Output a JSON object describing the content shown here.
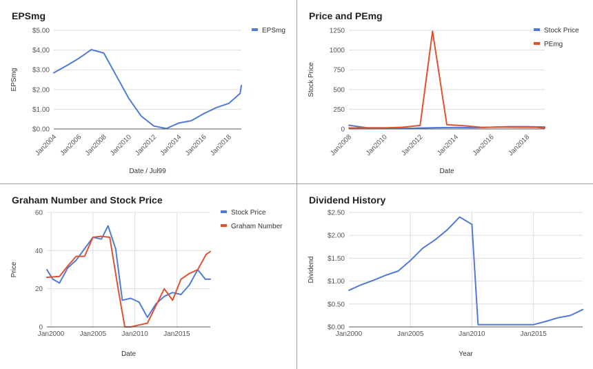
{
  "colors": {
    "blue": "#4f7ad9",
    "red": "#e0502f"
  },
  "chart_data": [
    {
      "id": "eps",
      "type": "line",
      "title": "EPSmg",
      "xlabel": "Date / Jul99",
      "ylabel": "EPSmg",
      "x_type": "year",
      "xlim": [
        2004,
        2019
      ],
      "ylim": [
        0,
        5
      ],
      "yticks": [
        {
          "v": 0,
          "label": "$0.00"
        },
        {
          "v": 1,
          "label": "$1.00"
        },
        {
          "v": 2,
          "label": "$2.00"
        },
        {
          "v": 3,
          "label": "$3.00"
        },
        {
          "v": 4,
          "label": "$4.00"
        },
        {
          "v": 5,
          "label": "$5.00"
        }
      ],
      "xticks": [
        {
          "v": 2004,
          "label": "Jan2004"
        },
        {
          "v": 2006,
          "label": "Jan2006"
        },
        {
          "v": 2008,
          "label": "Jan2008"
        },
        {
          "v": 2010,
          "label": "Jan2010"
        },
        {
          "v": 2012,
          "label": "Jan2012"
        },
        {
          "v": 2014,
          "label": "Jan2014"
        },
        {
          "v": 2016,
          "label": "Jan2016"
        },
        {
          "v": 2018,
          "label": "Jan2018"
        }
      ],
      "x_ticks_rotated": true,
      "vgrid": false,
      "legend_position": "top-right",
      "series": [
        {
          "name": "EPSmg",
          "color": "blue",
          "x": [
            2004,
            2005,
            2006,
            2007,
            2008,
            2009,
            2010,
            2011,
            2012,
            2013,
            2014,
            2015,
            2016,
            2017,
            2018,
            2018.9,
            2019
          ],
          "y": [
            2.85,
            3.2,
            3.58,
            4.02,
            3.85,
            2.7,
            1.55,
            0.65,
            0.15,
            0.02,
            0.3,
            0.42,
            0.78,
            1.08,
            1.3,
            1.8,
            2.2
          ]
        }
      ]
    },
    {
      "id": "pe",
      "type": "line",
      "title": "Price and PEmg",
      "xlabel": "Date",
      "ylabel": "Stock Price",
      "x_type": "year",
      "xlim": [
        2008,
        2019
      ],
      "ylim": [
        0,
        1250
      ],
      "yticks": [
        {
          "v": 0,
          "label": "0"
        },
        {
          "v": 250,
          "label": "250"
        },
        {
          "v": 500,
          "label": "500"
        },
        {
          "v": 750,
          "label": "750"
        },
        {
          "v": 1000,
          "label": "1000"
        },
        {
          "v": 1250,
          "label": "1250"
        }
      ],
      "xticks": [
        {
          "v": 2008,
          "label": "Jan2008"
        },
        {
          "v": 2010,
          "label": "Jan2010"
        },
        {
          "v": 2012,
          "label": "Jan2012"
        },
        {
          "v": 2014,
          "label": "Jan2014"
        },
        {
          "v": 2016,
          "label": "Jan2016"
        },
        {
          "v": 2018,
          "label": "Jan2018"
        }
      ],
      "x_ticks_rotated": true,
      "vgrid": false,
      "legend_position": "top-right",
      "series": [
        {
          "name": "Stock Price",
          "color": "blue",
          "x": [
            2008,
            2009,
            2010,
            2011,
            2012,
            2013,
            2014,
            2015,
            2016,
            2017,
            2018,
            2019
          ],
          "y": [
            47,
            15,
            14,
            6,
            12,
            17,
            18,
            17,
            22,
            30,
            30,
            25
          ]
        },
        {
          "name": "PEmg",
          "color": "red",
          "x": [
            2008,
            2009,
            2010,
            2011,
            2012,
            2012.7,
            2013.5,
            2014.5,
            2015.5,
            2016.5,
            2017.5,
            2018.5,
            2019
          ],
          "y": [
            13,
            14,
            14,
            22,
            45,
            1240,
            55,
            40,
            20,
            25,
            22,
            21,
            13
          ]
        }
      ]
    },
    {
      "id": "graham",
      "type": "line",
      "title": "Graham Number and Stock Price",
      "xlabel": "Date",
      "ylabel": "Price",
      "x_type": "year",
      "xlim": [
        1999.5,
        2019
      ],
      "ylim": [
        0,
        60
      ],
      "yticks": [
        {
          "v": 0,
          "label": "0"
        },
        {
          "v": 20,
          "label": "20"
        },
        {
          "v": 40,
          "label": "40"
        },
        {
          "v": 60,
          "label": "60"
        }
      ],
      "xticks": [
        {
          "v": 2000,
          "label": "Jan2000"
        },
        {
          "v": 2005,
          "label": "Jan2005"
        },
        {
          "v": 2010,
          "label": "Jan2010"
        },
        {
          "v": 2015,
          "label": "Jan2015"
        }
      ],
      "x_ticks_rotated": false,
      "vgrid": true,
      "legend_position": "top-right",
      "series": [
        {
          "name": "Stock Price",
          "color": "blue",
          "x": [
            1999.5,
            2000.2,
            2001,
            2002,
            2003,
            2004,
            2005,
            2006,
            2006.8,
            2007.7,
            2008.5,
            2009.5,
            2010.5,
            2011.5,
            2012.5,
            2013.5,
            2014.5,
            2015.5,
            2016.5,
            2017.5,
            2018.4,
            2019
          ],
          "y": [
            30,
            25,
            23,
            31,
            35,
            41,
            47,
            46,
            53,
            41,
            14,
            15,
            13,
            5,
            12,
            16,
            18,
            17,
            22,
            30,
            25,
            25
          ]
        },
        {
          "name": "Graham Number",
          "color": "red",
          "x": [
            1999.5,
            2001,
            2002,
            2003,
            2004,
            2005,
            2006,
            2007,
            2008,
            2008.8,
            2009.5,
            2010.5,
            2011.5,
            2012.5,
            2013.5,
            2014.5,
            2015.5,
            2016.5,
            2017.5,
            2018.5,
            2019
          ],
          "y": [
            26,
            26.5,
            32,
            37,
            37,
            47,
            47.5,
            47,
            20,
            0,
            0,
            1,
            2,
            11,
            20,
            14,
            25,
            28,
            30,
            38,
            39.5
          ]
        }
      ]
    },
    {
      "id": "dividend",
      "type": "line",
      "title": "Dividend History",
      "xlabel": "Year",
      "ylabel": "Dividend",
      "x_type": "year",
      "xlim": [
        2000,
        2019
      ],
      "ylim": [
        0,
        2.5
      ],
      "yticks": [
        {
          "v": 0,
          "label": "$0.00"
        },
        {
          "v": 0.5,
          "label": "$0.50"
        },
        {
          "v": 1,
          "label": "$1.00"
        },
        {
          "v": 1.5,
          "label": "$1.50"
        },
        {
          "v": 2,
          "label": "$2.00"
        },
        {
          "v": 2.5,
          "label": "$2.50"
        }
      ],
      "xticks": [
        {
          "v": 2000,
          "label": "Jan2000"
        },
        {
          "v": 2005,
          "label": "Jan2005"
        },
        {
          "v": 2010,
          "label": "Jan2010"
        },
        {
          "v": 2015,
          "label": "Jan2015"
        }
      ],
      "x_ticks_rotated": false,
      "vgrid": true,
      "legend_position": "none",
      "series": [
        {
          "color": "blue",
          "x": [
            2000,
            2001,
            2002,
            2003,
            2004,
            2005,
            2006,
            2007,
            2008,
            2009,
            2010,
            2010.5,
            2011,
            2012,
            2013,
            2014,
            2015,
            2016,
            2017,
            2018,
            2019
          ],
          "y": [
            0.8,
            0.92,
            1.02,
            1.13,
            1.22,
            1.45,
            1.72,
            1.9,
            2.12,
            2.4,
            2.24,
            0.05,
            0.05,
            0.05,
            0.05,
            0.05,
            0.05,
            0.12,
            0.2,
            0.25,
            0.38
          ]
        }
      ]
    }
  ]
}
